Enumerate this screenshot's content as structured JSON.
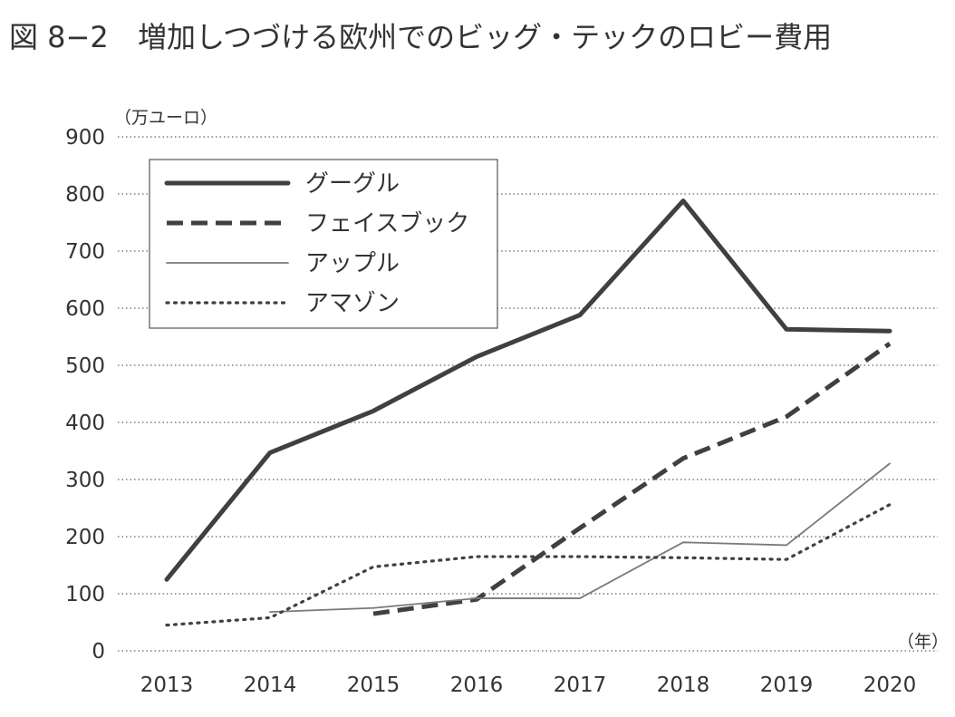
{
  "figure": {
    "number": "図 8−2",
    "title": "増加しつづける欧州でのビッグ・テックのロビー費用"
  },
  "chart_data": {
    "type": "line",
    "y_unit": "（万ユーロ）",
    "x_unit": "（年）",
    "ylim": [
      0,
      900
    ],
    "y_ticks": [
      0,
      100,
      200,
      300,
      400,
      500,
      600,
      700,
      800,
      900
    ],
    "grid": "horizontal-dotted",
    "legend_position": "top-left",
    "categories": [
      "2013",
      "2014",
      "2015",
      "2016",
      "2017",
      "2018",
      "2019",
      "2020"
    ],
    "series": [
      {
        "name": "グーグル",
        "style": "thick-solid",
        "color": "#404040",
        "values": [
          125,
          347,
          420,
          515,
          588,
          788,
          563,
          560
        ]
      },
      {
        "name": "フェイスブック",
        "style": "thick-dashed",
        "color": "#404040",
        "values": [
          null,
          null,
          65,
          90,
          215,
          337,
          410,
          538
        ]
      },
      {
        "name": "アップル",
        "style": "thin-solid",
        "color": "#7a7a7a",
        "values": [
          null,
          68,
          75,
          92,
          92,
          190,
          185,
          328
        ]
      },
      {
        "name": "アマゾン",
        "style": "dotted",
        "color": "#404040",
        "values": [
          45,
          58,
          147,
          165,
          165,
          163,
          160,
          256
        ]
      }
    ]
  }
}
